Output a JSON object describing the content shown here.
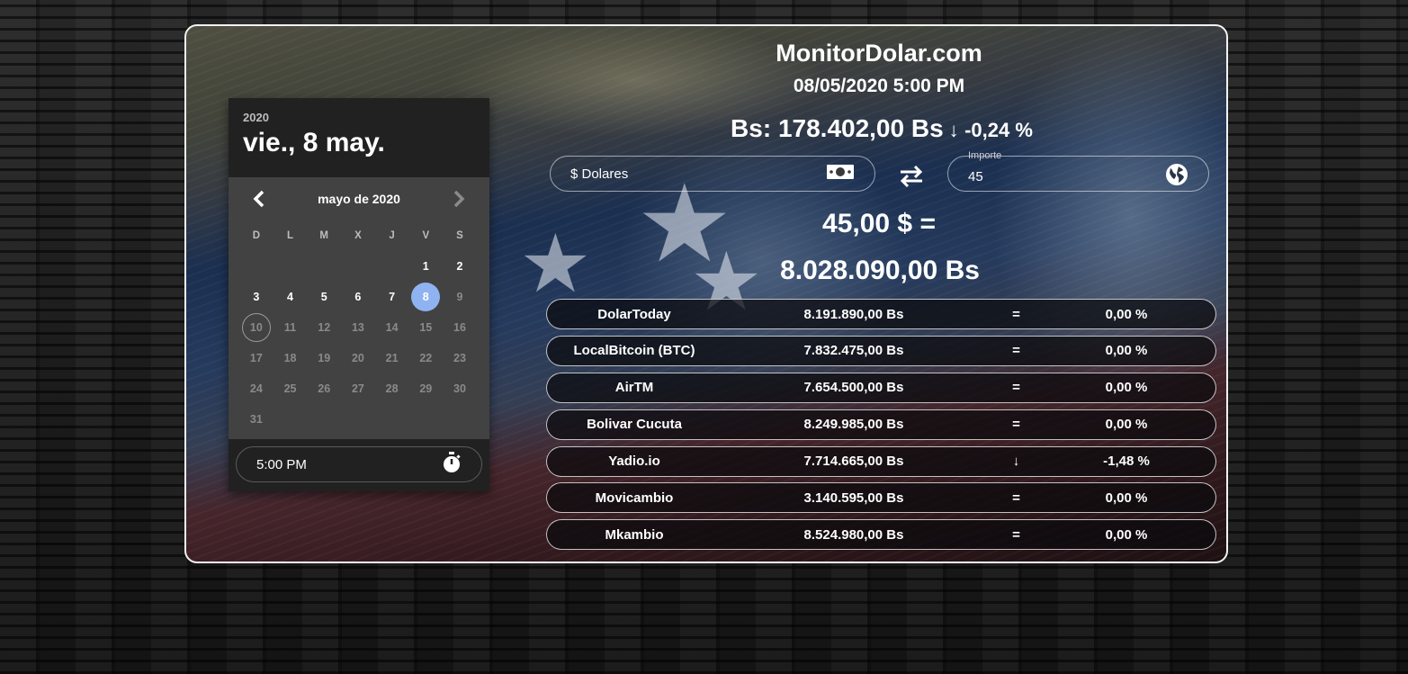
{
  "header": {
    "site_title": "MonitorDolar.com",
    "datetime": "08/05/2020 5:00 PM",
    "rate_main": "Bs: 178.402,00 Bs",
    "rate_trend": "↓",
    "rate_change": "-0,24 %"
  },
  "converter": {
    "currency_value": "$ Dolares",
    "currency_icon": "cash-icon",
    "amount_label": "Importe",
    "amount_value": "45",
    "amount_icon": "globe-icon",
    "swap_icon": "swap-arrows-icon",
    "result_usd": "45,00 $ =",
    "result_bs": "8.028.090,00 Bs"
  },
  "picker": {
    "year": "2020",
    "date_label": "vie., 8 may.",
    "month_title": "mayo de 2020",
    "weekdays": [
      "D",
      "L",
      "M",
      "X",
      "J",
      "V",
      "S"
    ],
    "weeks": [
      [
        "",
        "",
        "",
        "",
        "",
        "1",
        "2"
      ],
      [
        "3",
        "4",
        "5",
        "6",
        "7",
        "8",
        "9"
      ],
      [
        "10",
        "11",
        "12",
        "13",
        "14",
        "15",
        "16"
      ],
      [
        "17",
        "18",
        "19",
        "20",
        "21",
        "22",
        "23"
      ],
      [
        "24",
        "25",
        "26",
        "27",
        "28",
        "29",
        "30"
      ],
      [
        "31",
        "",
        "",
        "",
        "",
        "",
        ""
      ]
    ],
    "selected_day": "8",
    "today_day": "10",
    "last_enabled_day": "8",
    "time_value": "5:00 PM",
    "time_icon": "stopwatch-icon"
  },
  "rates": [
    {
      "name": "DolarToday",
      "value": "8.191.890,00 Bs",
      "trend": "=",
      "change": "0,00 %"
    },
    {
      "name": "LocalBitcoin (BTC)",
      "value": "7.832.475,00 Bs",
      "trend": "=",
      "change": "0,00 %"
    },
    {
      "name": "AirTM",
      "value": "7.654.500,00 Bs",
      "trend": "=",
      "change": "0,00 %"
    },
    {
      "name": "Bolivar Cucuta",
      "value": "8.249.985,00 Bs",
      "trend": "=",
      "change": "0,00 %"
    },
    {
      "name": "Yadio.io",
      "value": "7.714.665,00 Bs",
      "trend": "↓",
      "change": "-1,48 %"
    },
    {
      "name": "Movicambio",
      "value": "3.140.595,00 Bs",
      "trend": "=",
      "change": "0,00 %"
    },
    {
      "name": "Mkambio",
      "value": "8.524.980,00 Bs",
      "trend": "=",
      "change": "0,00 %"
    }
  ],
  "colors": {
    "selected_day": "#8fb3f0",
    "picker_body": "#424242",
    "picker_head": "#212121"
  }
}
